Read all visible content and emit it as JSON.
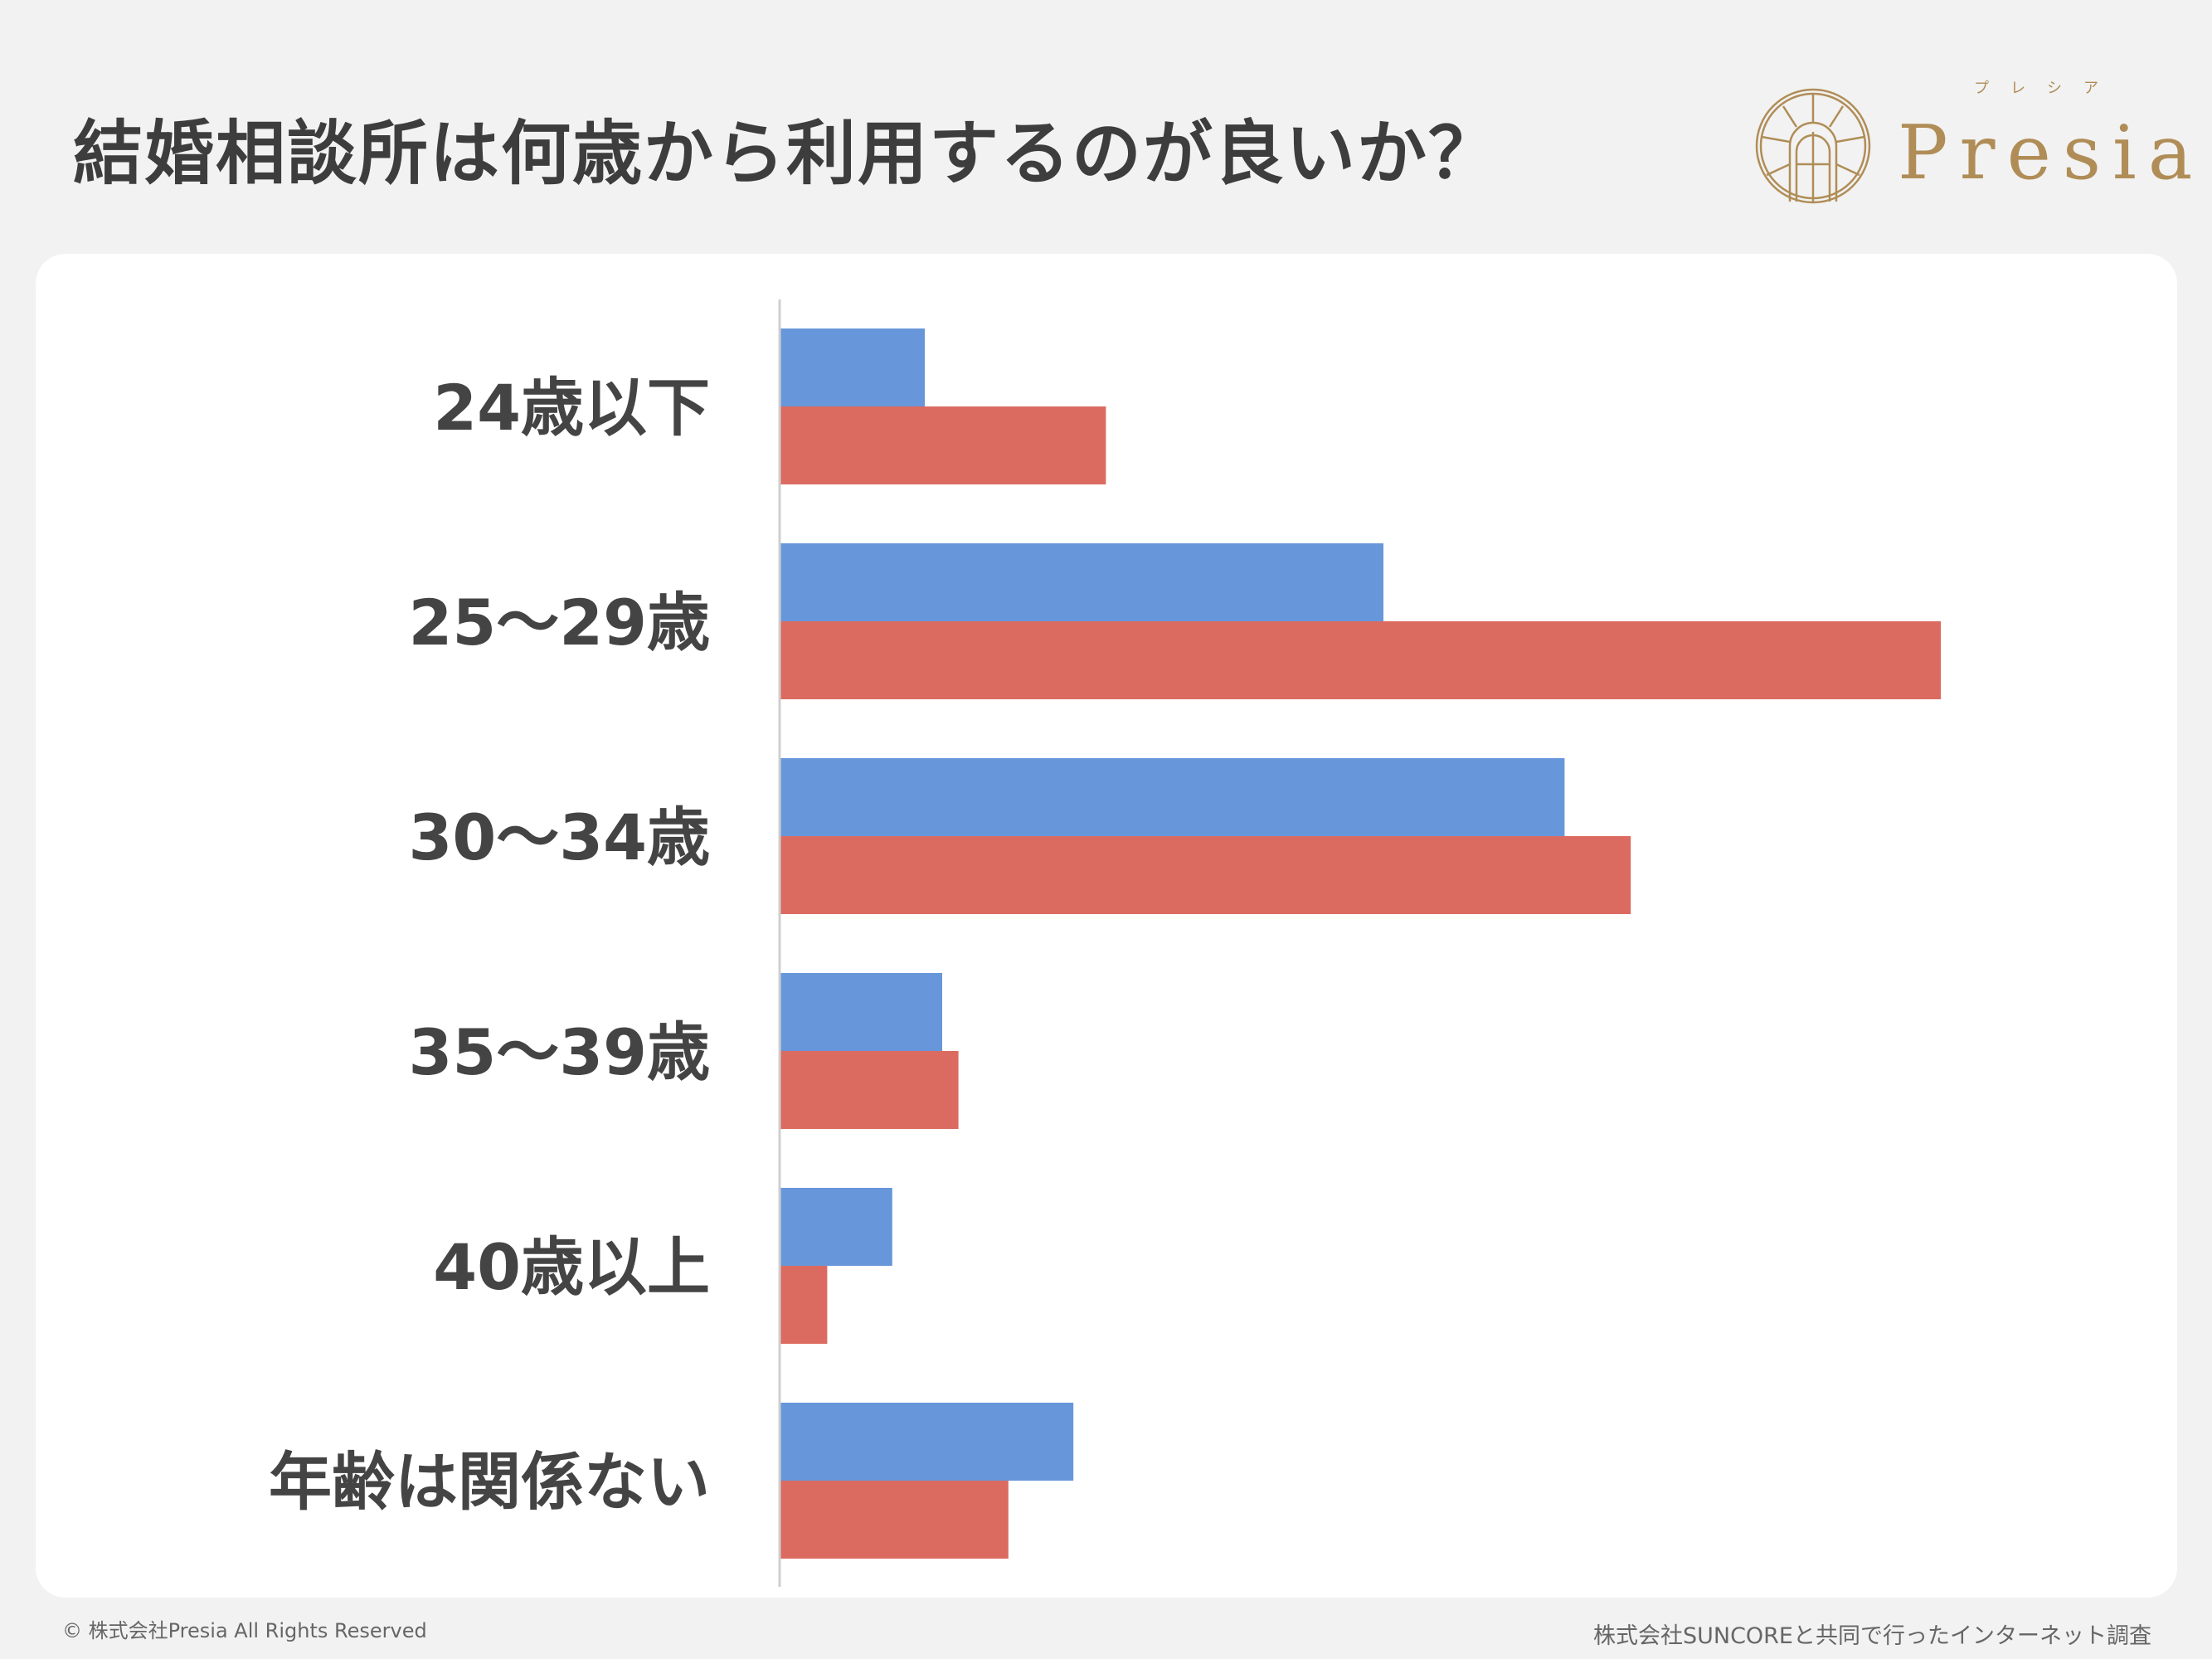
{
  "header": {
    "title": "結婚相談所は何歳から利用するのが良いか？"
  },
  "logo": {
    "text": "Presia",
    "kana": "プレシア",
    "color": "#b08d57"
  },
  "chart_data": {
    "type": "bar",
    "orientation": "horizontal",
    "title": "",
    "categories": [
      "24歳以下",
      "25〜29歳",
      "30〜34歳",
      "35〜39歳",
      "40歳以上",
      "年齢は関係ない"
    ],
    "series": [
      {
        "color": "#6797da",
        "values": [
          12.5,
          52.0,
          67.6,
          14.0,
          9.7,
          25.3
        ]
      },
      {
        "color": "#db6b60",
        "values": [
          28.1,
          100.0,
          73.3,
          15.4,
          4.1,
          19.7
        ]
      }
    ],
    "xlim": [
      0,
      100
    ],
    "grid": false,
    "legend": "none",
    "value_labels": false
  },
  "footer": {
    "copyright": "© 株式会社Presia All Rights Reserved",
    "source": "株式会社SUNCOREと共同で行ったインターネット調査"
  }
}
